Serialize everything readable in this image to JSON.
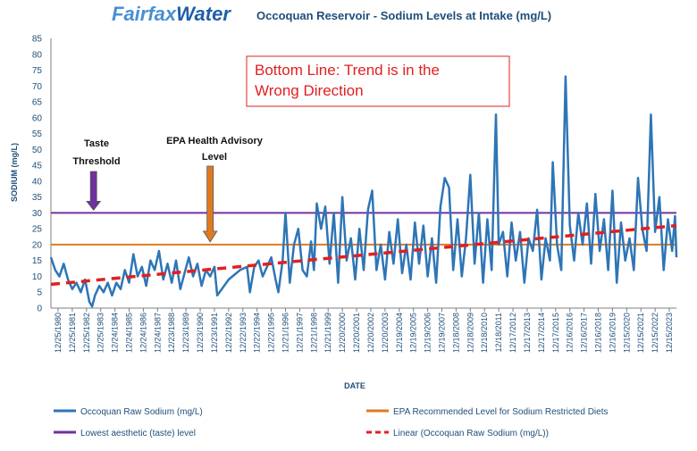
{
  "logo": {
    "part1": "Fairfax",
    "part2": "Water"
  },
  "chart_data": {
    "type": "line",
    "title": "Occoquan Reservoir - Sodium Levels at Intake (mg/L)",
    "xlabel": "DATE",
    "ylabel": "SODIUM (mg/L)",
    "ylim": [
      0,
      85
    ],
    "yticks": [
      0,
      5,
      10,
      15,
      20,
      25,
      30,
      35,
      40,
      45,
      50,
      55,
      60,
      65,
      70,
      75,
      80,
      85
    ],
    "grid": false,
    "legend_position": "bottom",
    "x_tick_labels": [
      "12/25/1980",
      "12/25/1981",
      "12/25/1982",
      "12/25/1983",
      "12/24/1984",
      "12/24/1985",
      "12/24/1986",
      "12/24/1987",
      "12/23/1988",
      "12/23/1989",
      "12/23/1990",
      "12/23/1991",
      "12/22/1992",
      "12/22/1993",
      "12/22/1994",
      "12/22/1995",
      "12/21/1996",
      "12/21/1997",
      "12/21/1998",
      "12/21/1999",
      "12/20/2000",
      "12/20/2001",
      "12/20/2002",
      "12/20/2003",
      "12/19/2004",
      "12/19/2005",
      "12/19/2006",
      "12/19/2007",
      "12/18/2008",
      "12/18/2009",
      "12/18/2010",
      "12/18/2011",
      "12/17/2012",
      "12/17/2013",
      "12/17/2014",
      "12/17/2015",
      "12/16/2016",
      "12/16/2017",
      "12/16/2018",
      "12/16/2019",
      "12/15/2020",
      "12/15/2021",
      "12/15/2022",
      "12/15/2023"
    ],
    "x_range": [
      1980,
      2024
    ],
    "series": [
      {
        "name": "Occoquan Raw Sodium (mg/L)",
        "color": "#2e75b6",
        "style": "solid",
        "points": [
          [
            1980.0,
            16
          ],
          [
            1980.3,
            12
          ],
          [
            1980.6,
            10
          ],
          [
            1980.9,
            14
          ],
          [
            1981.2,
            9
          ],
          [
            1981.5,
            6
          ],
          [
            1981.8,
            8
          ],
          [
            1982.1,
            5
          ],
          [
            1982.4,
            9
          ],
          [
            1982.7,
            2
          ],
          [
            1982.9,
            0.5
          ],
          [
            1983.1,
            4
          ],
          [
            1983.4,
            7
          ],
          [
            1983.7,
            5
          ],
          [
            1984.0,
            8
          ],
          [
            1984.3,
            4
          ],
          [
            1984.6,
            8
          ],
          [
            1984.9,
            6
          ],
          [
            1985.2,
            12
          ],
          [
            1985.5,
            8
          ],
          [
            1985.8,
            17
          ],
          [
            1986.1,
            10
          ],
          [
            1986.4,
            13
          ],
          [
            1986.7,
            7
          ],
          [
            1987.0,
            15
          ],
          [
            1987.3,
            12
          ],
          [
            1987.6,
            18
          ],
          [
            1987.9,
            9
          ],
          [
            1988.2,
            14
          ],
          [
            1988.5,
            8
          ],
          [
            1988.8,
            15
          ],
          [
            1989.1,
            6
          ],
          [
            1989.4,
            11
          ],
          [
            1989.7,
            16
          ],
          [
            1990.0,
            10
          ],
          [
            1990.3,
            14
          ],
          [
            1990.6,
            7
          ],
          [
            1990.9,
            12
          ],
          [
            1991.2,
            10
          ],
          [
            1991.5,
            13
          ],
          [
            1991.7,
            4
          ],
          [
            1992.5,
            9
          ],
          [
            1993.3,
            12
          ],
          [
            1993.8,
            13
          ],
          [
            1994.0,
            5
          ],
          [
            1994.3,
            13
          ],
          [
            1994.6,
            15
          ],
          [
            1994.9,
            10
          ],
          [
            1995.2,
            13
          ],
          [
            1995.5,
            16
          ],
          [
            1995.8,
            9
          ],
          [
            1996.0,
            5
          ],
          [
            1996.3,
            15
          ],
          [
            1996.5,
            30
          ],
          [
            1996.8,
            8
          ],
          [
            1997.1,
            20
          ],
          [
            1997.4,
            25
          ],
          [
            1997.7,
            12
          ],
          [
            1998.0,
            10
          ],
          [
            1998.3,
            21
          ],
          [
            1998.5,
            12
          ],
          [
            1998.7,
            33
          ],
          [
            1999.0,
            25
          ],
          [
            1999.3,
            32
          ],
          [
            1999.6,
            14
          ],
          [
            1999.9,
            30
          ],
          [
            2000.2,
            8
          ],
          [
            2000.5,
            35
          ],
          [
            2000.8,
            15
          ],
          [
            2001.1,
            22
          ],
          [
            2001.4,
            9
          ],
          [
            2001.7,
            25
          ],
          [
            2002.0,
            12
          ],
          [
            2002.3,
            31
          ],
          [
            2002.6,
            37
          ],
          [
            2002.9,
            12
          ],
          [
            2003.2,
            20
          ],
          [
            2003.5,
            9
          ],
          [
            2003.8,
            24
          ],
          [
            2004.1,
            14
          ],
          [
            2004.4,
            28
          ],
          [
            2004.7,
            11
          ],
          [
            2005.0,
            20
          ],
          [
            2005.3,
            9
          ],
          [
            2005.6,
            27
          ],
          [
            2005.9,
            14
          ],
          [
            2006.2,
            26
          ],
          [
            2006.5,
            10
          ],
          [
            2006.8,
            22
          ],
          [
            2007.1,
            8
          ],
          [
            2007.4,
            32
          ],
          [
            2007.7,
            41
          ],
          [
            2008.0,
            38
          ],
          [
            2008.3,
            12
          ],
          [
            2008.6,
            28
          ],
          [
            2008.9,
            10
          ],
          [
            2009.2,
            22
          ],
          [
            2009.5,
            42
          ],
          [
            2009.8,
            14
          ],
          [
            2010.1,
            30
          ],
          [
            2010.4,
            8
          ],
          [
            2010.7,
            28
          ],
          [
            2011.0,
            12
          ],
          [
            2011.3,
            61
          ],
          [
            2011.5,
            20
          ],
          [
            2011.8,
            24
          ],
          [
            2012.1,
            10
          ],
          [
            2012.4,
            27
          ],
          [
            2012.7,
            15
          ],
          [
            2013.0,
            24
          ],
          [
            2013.3,
            8
          ],
          [
            2013.6,
            22
          ],
          [
            2013.9,
            18
          ],
          [
            2014.2,
            31
          ],
          [
            2014.5,
            9
          ],
          [
            2014.8,
            22
          ],
          [
            2015.1,
            15
          ],
          [
            2015.3,
            46
          ],
          [
            2015.6,
            20
          ],
          [
            2015.9,
            12
          ],
          [
            2016.2,
            73
          ],
          [
            2016.5,
            26
          ],
          [
            2016.8,
            15
          ],
          [
            2017.1,
            30
          ],
          [
            2017.4,
            20
          ],
          [
            2017.7,
            33
          ],
          [
            2018.0,
            14
          ],
          [
            2018.3,
            36
          ],
          [
            2018.6,
            18
          ],
          [
            2018.9,
            28
          ],
          [
            2019.2,
            12
          ],
          [
            2019.5,
            37
          ],
          [
            2019.8,
            8
          ],
          [
            2020.1,
            27
          ],
          [
            2020.4,
            15
          ],
          [
            2020.7,
            22
          ],
          [
            2021.0,
            12
          ],
          [
            2021.3,
            41
          ],
          [
            2021.6,
            25
          ],
          [
            2021.9,
            18
          ],
          [
            2022.2,
            61
          ],
          [
            2022.5,
            24
          ],
          [
            2022.8,
            35
          ],
          [
            2023.1,
            12
          ],
          [
            2023.4,
            28
          ],
          [
            2023.7,
            18
          ],
          [
            2023.9,
            29
          ],
          [
            2024.0,
            16
          ]
        ]
      },
      {
        "name": "EPA Recommended Level for Sodium Restricted Diets",
        "color": "#e07a20",
        "style": "solid",
        "points": [
          [
            1980,
            20
          ],
          [
            2024,
            20
          ]
        ]
      },
      {
        "name": "Lowest aesthetic (taste) level",
        "color": "#7030a0",
        "style": "solid",
        "points": [
          [
            1980,
            30
          ],
          [
            2024,
            30
          ]
        ]
      },
      {
        "name": "Linear (Occoquan Raw Sodium (mg/L))",
        "color": "#e02020",
        "style": "dashed",
        "points": [
          [
            1980,
            7.5
          ],
          [
            2024,
            26
          ]
        ]
      }
    ],
    "annotations": [
      {
        "text_lines": [
          "Taste",
          "Threshold"
        ],
        "arrow_color": "#7030a0",
        "points_to": {
          "x": 1983.0,
          "y": 30
        }
      },
      {
        "text_lines": [
          "EPA Health Advisory",
          "Level"
        ],
        "arrow_color": "#e07a20",
        "points_to": {
          "x": 1991.2,
          "y": 20
        }
      },
      {
        "text_lines": [
          "Bottom Line: Trend is in the",
          "Wrong Direction"
        ],
        "box_color": "#e02020"
      }
    ]
  }
}
